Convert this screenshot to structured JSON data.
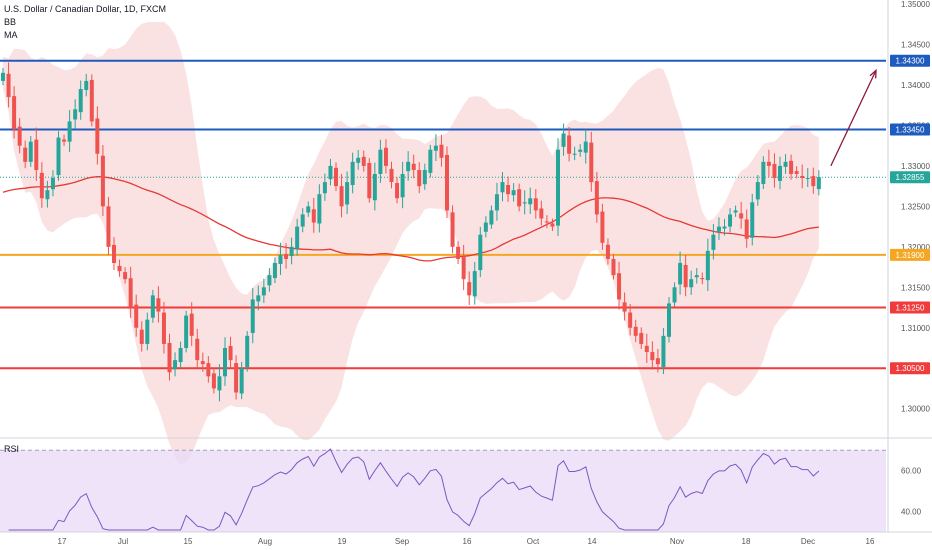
{
  "legend": {
    "symbol": "U.S. Dollar / Canadian Dollar, 1D, FXCM",
    "bb": "BB",
    "ma": "MA"
  },
  "rsi_label": "RSI",
  "chart_data": [
    {
      "type": "candlestick",
      "title": "U.S. Dollar / Canadian Dollar, 1D, FXCM",
      "ylim": [
        1.2965,
        1.3505
      ],
      "y_ticks": [
        "1.35000",
        "1.34500",
        "1.34000",
        "1.33500",
        "1.33000",
        "1.32500",
        "1.32000",
        "1.31500",
        "1.31000",
        "1.30500",
        "1.30000"
      ],
      "x_ticks": [
        "17",
        "Jul",
        "15",
        "Aug",
        "19",
        "Sep",
        "16",
        "Oct",
        "14",
        "Nov",
        "18",
        "Dec",
        "16"
      ],
      "last_price": "1.32855",
      "horizontal_levels": [
        {
          "value": 1.343,
          "label": "1.34300",
          "color": "#1e5bbf"
        },
        {
          "value": 1.3345,
          "label": "1.33450",
          "color": "#1e5bbf"
        },
        {
          "value": 1.319,
          "label": "1.31900",
          "color": "#f5a623"
        },
        {
          "value": 1.3125,
          "label": "1.31250",
          "color": "#ef3b3b"
        },
        {
          "value": 1.305,
          "label": "1.30500",
          "color": "#ef3b3b"
        }
      ],
      "projection": {
        "from": 1.33,
        "to": 1.3418,
        "color": "#8b1a3a"
      },
      "series": [
        {
          "name": "Close",
          "values": [
            1.3415,
            1.3385,
            1.3345,
            1.3325,
            1.3305,
            1.333,
            1.3295,
            1.326,
            1.327,
            1.3285,
            1.3335,
            1.333,
            1.3355,
            1.337,
            1.3395,
            1.3405,
            1.3355,
            1.3315,
            1.325,
            1.32,
            1.318,
            1.317,
            1.316,
            1.3125,
            1.31,
            1.308,
            1.311,
            1.314,
            1.312,
            1.308,
            1.3045,
            1.306,
            1.3075,
            1.3115,
            1.309,
            1.306,
            1.3055,
            1.304,
            1.3025,
            1.304,
            1.3075,
            1.306,
            1.302,
            1.305,
            1.309,
            1.3135,
            1.314,
            1.315,
            1.3165,
            1.318,
            1.319,
            1.3185,
            1.32,
            1.3225,
            1.324,
            1.325,
            1.323,
            1.3265,
            1.328,
            1.33,
            1.3275,
            1.325,
            1.328,
            1.3305,
            1.331,
            1.33,
            1.326,
            1.329,
            1.332,
            1.33,
            1.328,
            1.326,
            1.329,
            1.3305,
            1.3295,
            1.3275,
            1.3295,
            1.332,
            1.3325,
            1.331,
            1.3245,
            1.32,
            1.3185,
            1.316,
            1.314,
            1.317,
            1.3215,
            1.323,
            1.3245,
            1.3265,
            1.328,
            1.3265,
            1.327,
            1.325,
            1.3255,
            1.326,
            1.3245,
            1.3235,
            1.323,
            1.3225,
            1.332,
            1.334,
            1.3315,
            1.3315,
            1.332,
            1.333,
            1.328,
            1.324,
            1.3205,
            1.3185,
            1.3165,
            1.3135,
            1.312,
            1.31,
            1.309,
            1.308,
            1.307,
            1.306,
            1.3055,
            1.309,
            1.313,
            1.315,
            1.318,
            1.315,
            1.316,
            1.3165,
            1.316,
            1.3195,
            1.3215,
            1.3225,
            1.3225,
            1.324,
            1.3245,
            1.3235,
            1.321,
            1.3255,
            1.328,
            1.3305,
            1.33,
            1.3285,
            1.33,
            1.3305,
            1.329,
            1.329,
            1.3285,
            1.3285,
            1.3275,
            1.3286
          ]
        }
      ]
    },
    {
      "type": "line",
      "title": "RSI",
      "ylim": [
        30,
        75
      ],
      "y_ticks": [
        "60.00",
        "40.00"
      ],
      "levels": [
        70,
        30
      ]
    }
  ]
}
